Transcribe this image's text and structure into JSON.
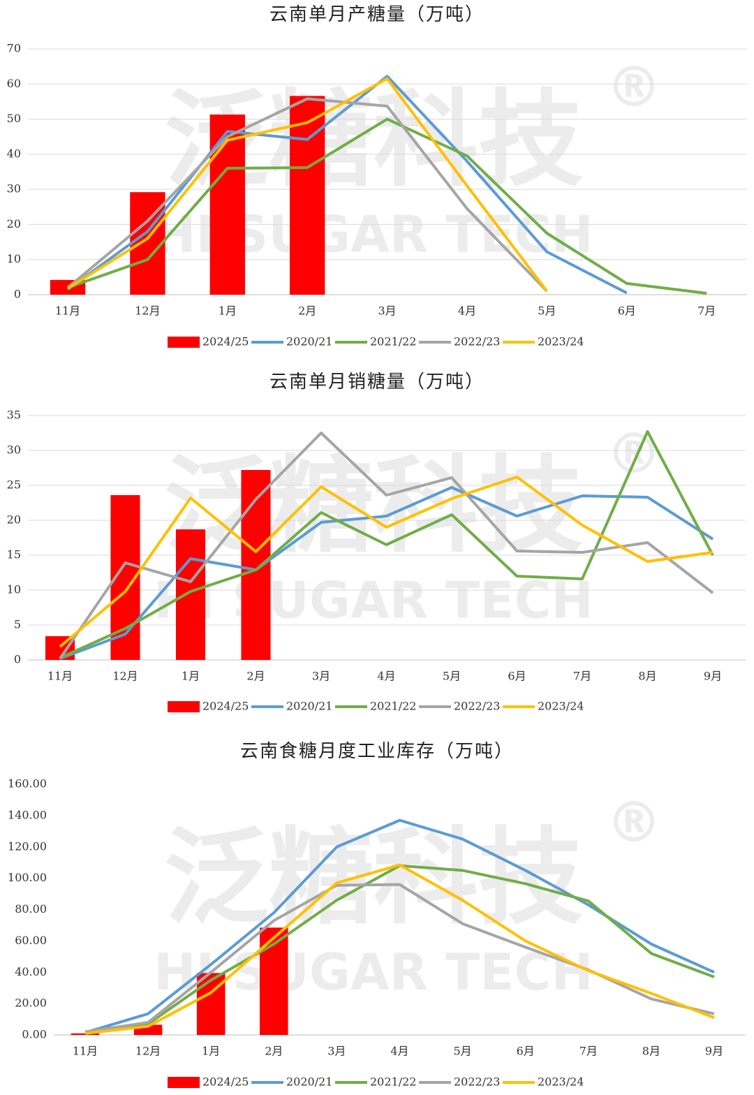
{
  "watermark": {
    "text": "泛糖科技",
    "subtext": "HI SUGAR TECH",
    "mark": "®"
  },
  "chart_data": [
    {
      "type": "combo",
      "title": "云南单月产糖量（万吨）",
      "categories": [
        "11月",
        "12月",
        "1月",
        "2月",
        "3月",
        "4月",
        "5月",
        "6月",
        "7月"
      ],
      "ylim": [
        0,
        70
      ],
      "yticks": [
        0,
        10,
        20,
        30,
        40,
        50,
        60,
        70
      ],
      "grid": true,
      "series": [
        {
          "name": "2024/25",
          "type": "bar",
          "color": "#ff0000",
          "values": [
            4.2,
            29.2,
            51.3,
            56.6,
            null,
            null,
            null,
            null,
            null
          ]
        },
        {
          "name": "2020/21",
          "type": "line",
          "color": "#5b9bd5",
          "values": [
            1.5,
            18,
            46.5,
            44.2,
            62.2,
            38,
            12.2,
            0.5,
            null
          ]
        },
        {
          "name": "2021/22",
          "type": "line",
          "color": "#70ad47",
          "values": [
            2,
            10,
            36,
            36.2,
            50,
            39.5,
            17.5,
            3.2,
            0.4
          ]
        },
        {
          "name": "2022/23",
          "type": "line",
          "color": "#a5a5a5",
          "values": [
            2,
            21,
            45,
            55.8,
            53.7,
            24.5,
            1,
            null,
            null
          ]
        },
        {
          "name": "2023/24",
          "type": "line",
          "color": "#ffc000",
          "values": [
            1.8,
            16,
            44,
            49,
            61.5,
            31,
            1,
            null,
            null
          ]
        }
      ]
    },
    {
      "type": "combo",
      "title": "云南单月销糖量（万吨）",
      "categories": [
        "11月",
        "12月",
        "1月",
        "2月",
        "3月",
        "4月",
        "5月",
        "6月",
        "7月",
        "8月",
        "9月"
      ],
      "ylim": [
        0,
        35
      ],
      "yticks": [
        0,
        5,
        10,
        15,
        20,
        25,
        30,
        35
      ],
      "grid": true,
      "series": [
        {
          "name": "2024/25",
          "type": "bar",
          "color": "#ff0000",
          "values": [
            3.4,
            23.6,
            18.7,
            27.2,
            null,
            null,
            null,
            null,
            null,
            null,
            null
          ]
        },
        {
          "name": "2020/21",
          "type": "line",
          "color": "#5b9bd5",
          "values": [
            0.2,
            3.7,
            14.5,
            12.9,
            19.7,
            20.6,
            24.7,
            20.6,
            23.5,
            23.3,
            17.3
          ]
        },
        {
          "name": "2021/22",
          "type": "line",
          "color": "#70ad47",
          "values": [
            0.3,
            4.5,
            9.8,
            12.9,
            21.1,
            16.5,
            20.8,
            12,
            11.6,
            32.7,
            15
          ]
        },
        {
          "name": "2022/23",
          "type": "line",
          "color": "#a5a5a5",
          "values": [
            0.2,
            13.9,
            11.2,
            23,
            32.5,
            23.6,
            26.1,
            15.6,
            15.4,
            16.8,
            9.6
          ]
        },
        {
          "name": "2023/24",
          "type": "line",
          "color": "#ffc000",
          "values": [
            1.9,
            9.8,
            23.2,
            15.5,
            24.8,
            19,
            23.1,
            26.2,
            19.3,
            14.1,
            15.4
          ]
        }
      ]
    },
    {
      "type": "combo",
      "title": "云南食糖月度工业库存（万吨）",
      "categories": [
        "11月",
        "12月",
        "1月",
        "2月",
        "3月",
        "4月",
        "5月",
        "6月",
        "7月",
        "8月",
        "9月"
      ],
      "ylim": [
        0,
        160
      ],
      "yticks": [
        {
          "value": 0,
          "label": "0.00"
        },
        {
          "value": 20,
          "label": "20.00"
        },
        {
          "value": 40,
          "label": "40.00"
        },
        {
          "value": 60,
          "label": "60.00"
        },
        {
          "value": 80,
          "label": "80.00"
        },
        {
          "value": 100,
          "label": "100.00"
        },
        {
          "value": 120,
          "label": "120.00"
        },
        {
          "value": 140,
          "label": "140.00"
        },
        {
          "value": 160,
          "label": "160.00"
        }
      ],
      "grid": false,
      "series": [
        {
          "name": "2024/25",
          "type": "bar",
          "color": "#ff0000",
          "values": [
            1,
            6.5,
            39.5,
            68.5,
            null,
            null,
            null,
            null,
            null,
            null,
            null
          ]
        },
        {
          "name": "2020/21",
          "type": "line",
          "color": "#5b9bd5",
          "values": [
            1.5,
            13.5,
            45,
            78,
            120,
            137,
            125,
            105,
            83,
            58,
            40
          ]
        },
        {
          "name": "2021/22",
          "type": "line",
          "color": "#70ad47",
          "values": [
            1.5,
            7,
            35,
            58,
            86,
            108,
            105,
            96.5,
            85.5,
            52,
            37
          ]
        },
        {
          "name": "2022/23",
          "type": "line",
          "color": "#a5a5a5",
          "values": [
            2,
            8,
            40,
            73,
            95.5,
            96,
            71,
            56,
            41.5,
            23,
            13.5
          ]
        },
        {
          "name": "2023/24",
          "type": "line",
          "color": "#ffc000",
          "values": [
            1,
            5.5,
            27,
            62,
            97,
            108.5,
            86,
            60,
            41,
            26.5,
            11
          ]
        }
      ]
    }
  ]
}
